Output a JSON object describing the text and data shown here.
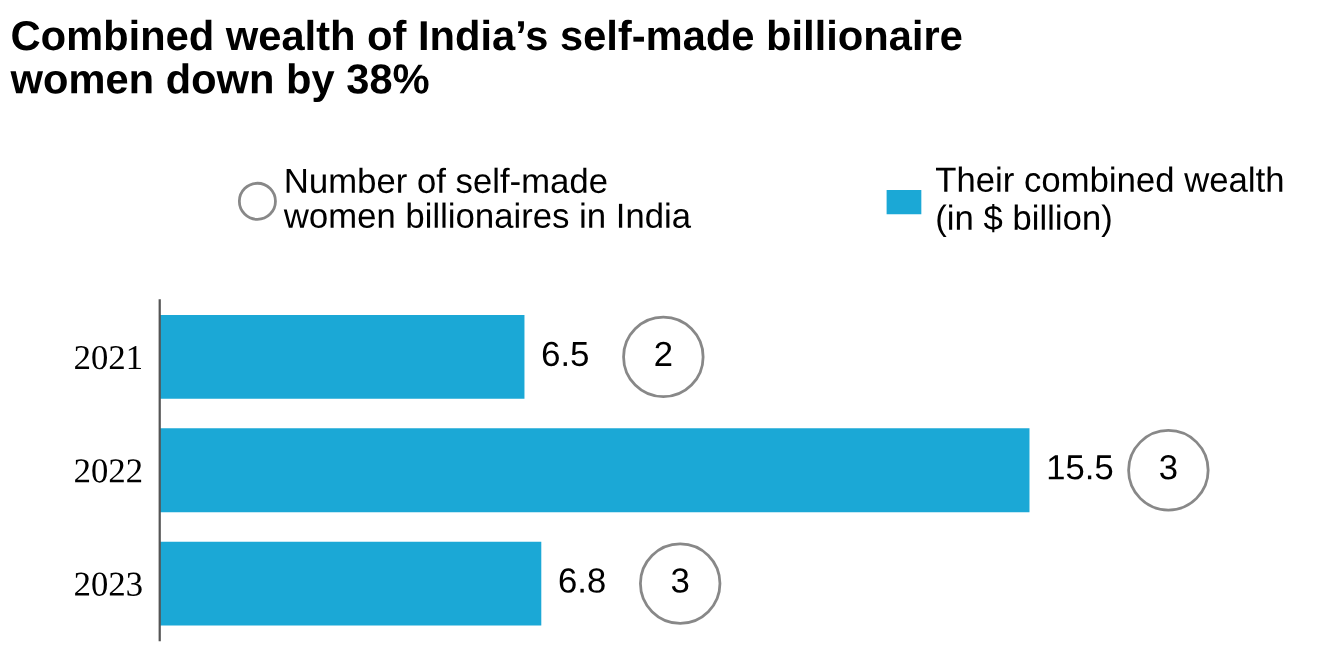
{
  "chart_data": {
    "type": "bar",
    "orientation": "horizontal",
    "title": "Combined wealth of India’s self-made billionaire\nwomen down by 38%",
    "categories": [
      "2021",
      "2022",
      "2023"
    ],
    "series": [
      {
        "name": "Their combined wealth\n(in $ billion)",
        "color": "#1ba8d6",
        "values": [
          6.5,
          15.5,
          6.8
        ]
      }
    ],
    "annotations": [
      "Number of self-made\nwomen billionaires in India",
      "2",
      "3",
      "3"
    ],
    "data_labels": true,
    "legend": "top",
    "grid": false
  }
}
